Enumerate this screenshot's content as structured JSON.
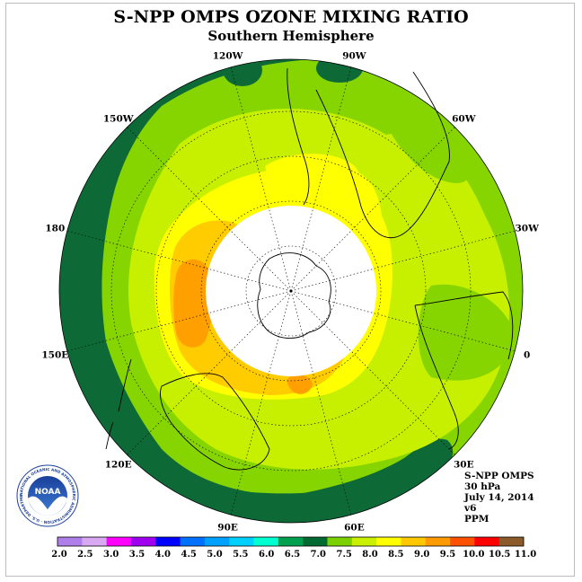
{
  "header": {
    "title": "S-NPP OMPS OZONE MIXING RATIO",
    "subtitle": "Southern Hemisphere"
  },
  "longitude_labels": [
    {
      "text": "0",
      "lon": 0
    },
    {
      "text": "30E",
      "lon": 30
    },
    {
      "text": "60E",
      "lon": 60
    },
    {
      "text": "90E",
      "lon": 90
    },
    {
      "text": "120E",
      "lon": 120
    },
    {
      "text": "150E",
      "lon": 150
    },
    {
      "text": "180",
      "lon": 180
    },
    {
      "text": "150W",
      "lon": -150
    },
    {
      "text": "120W",
      "lon": -120
    },
    {
      "text": "90W",
      "lon": -90
    },
    {
      "text": "60W",
      "lon": -60
    },
    {
      "text": "30W",
      "lon": -30
    }
  ],
  "info": {
    "line1": "S-NPP OMPS",
    "line2": "30 hPa",
    "line3": "July 14, 2014",
    "line4": "v6",
    "line5": "PPM"
  },
  "logo": {
    "text": "NOAA",
    "ring_text": "NATIONAL OCEANIC AND ATMOSPHERIC ADMINISTRATION · U.S. DEPARTMENT OF COMMERCE ·"
  },
  "colorbar": {
    "ticks": [
      "2.0",
      "2.5",
      "3.0",
      "3.5",
      "4.0",
      "4.5",
      "5.0",
      "5.5",
      "6.0",
      "6.5",
      "7.0",
      "7.5",
      "8.0",
      "8.5",
      "9.0",
      "9.5",
      "10.0",
      "10.5",
      "11.0"
    ],
    "colors": [
      "#b07ee8",
      "#d8a8f0",
      "#ff00ff",
      "#a000f0",
      "#0000ff",
      "#0070ff",
      "#00a0ff",
      "#00d0ff",
      "#00ffd0",
      "#00a050",
      "#006a32",
      "#7cd000",
      "#c8f000",
      "#ffff00",
      "#ffc800",
      "#ff9a00",
      "#ff5000",
      "#ff0000",
      "#8b5a2b"
    ]
  },
  "colors": {
    "dark_green": "#0d6a37",
    "green": "#86d400",
    "yellow_green": "#c7f000",
    "yellow": "#ffff00",
    "orange": "#ffcc00",
    "dark_orange": "#ff9f00"
  }
}
